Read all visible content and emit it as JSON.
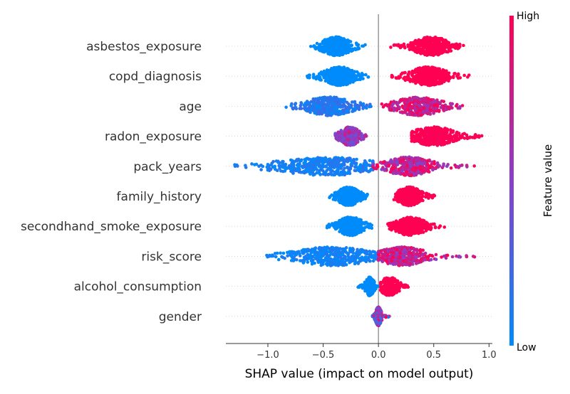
{
  "chart_data": {
    "type": "scatter",
    "subtype": "shap-beeswarm",
    "title": "",
    "xlabel": "SHAP value (impact on model output)",
    "ylabel": "",
    "xlim": [
      -1.38,
      1.03
    ],
    "xticks": [
      {
        "value": -1.0,
        "label": "−1.0"
      },
      {
        "value": -0.5,
        "label": "−0.5"
      },
      {
        "value": 0.0,
        "label": "0.0"
      },
      {
        "value": 0.5,
        "label": "0.5"
      },
      {
        "value": 1.0,
        "label": "1.0"
      }
    ],
    "grid": false,
    "zero_line": true,
    "colorbar": {
      "title": "Feature value",
      "high_label": "High",
      "low_label": "Low",
      "low_color": "#008bfb",
      "mid_color": "#8a3fc9",
      "high_color": "#ff0052"
    },
    "features": [
      {
        "name": "asbestos_exposure",
        "clusters": [
          {
            "center": -0.38,
            "min": -0.62,
            "max": -0.12,
            "spread": 0.075,
            "color_value": 0.0,
            "color_jitter": 0.0,
            "count": 420
          },
          {
            "center": 0.48,
            "min": 0.11,
            "max": 0.8,
            "spread": 0.09,
            "color_value": 1.0,
            "color_jitter": 0.0,
            "count": 420
          }
        ]
      },
      {
        "name": "copd_diagnosis",
        "clusters": [
          {
            "center": -0.35,
            "min": -0.65,
            "max": -0.09,
            "spread": 0.08,
            "color_value": 0.0,
            "color_jitter": 0.0,
            "count": 420
          },
          {
            "center": 0.45,
            "min": 0.11,
            "max": 0.84,
            "spread": 0.095,
            "color_value": 1.0,
            "color_jitter": 0.0,
            "count": 420
          }
        ]
      },
      {
        "name": "age",
        "clusters": [
          {
            "center": -0.45,
            "min": -0.84,
            "max": -0.05,
            "spread": 0.12,
            "color_value": 0.12,
            "color_jitter": 0.12,
            "count": 400
          },
          {
            "center": 0.36,
            "min": 0.03,
            "max": 0.76,
            "spread": 0.12,
            "color_value": 0.8,
            "color_jitter": 0.25,
            "count": 400
          }
        ]
      },
      {
        "name": "radon_exposure",
        "clusters": [
          {
            "center": -0.26,
            "min": -0.39,
            "max": -0.1,
            "spread": 0.05,
            "color_value": 0.55,
            "color_jitter": 0.25,
            "count": 350
          },
          {
            "center": 0.5,
            "min": 0.3,
            "max": 0.94,
            "spread": 0.11,
            "color_value": 1.0,
            "color_jitter": 0.05,
            "count": 420
          }
        ]
      },
      {
        "name": "pack_years",
        "clusters": [
          {
            "center": -0.48,
            "min": -1.32,
            "max": -0.05,
            "spread": 0.25,
            "color_value": 0.08,
            "color_jitter": 0.1,
            "count": 430
          },
          {
            "center": 0.28,
            "min": -0.05,
            "max": 0.87,
            "spread": 0.12,
            "color_value": 0.72,
            "color_jitter": 0.3,
            "count": 430
          }
        ]
      },
      {
        "name": "family_history",
        "clusters": [
          {
            "center": -0.27,
            "min": -0.45,
            "max": -0.1,
            "spread": 0.055,
            "color_value": 0.0,
            "color_jitter": 0.0,
            "count": 340
          },
          {
            "center": 0.28,
            "min": 0.14,
            "max": 0.52,
            "spread": 0.06,
            "color_value": 1.0,
            "color_jitter": 0.0,
            "count": 340
          }
        ]
      },
      {
        "name": "secondhand_smoke_exposure",
        "clusters": [
          {
            "center": -0.25,
            "min": -0.47,
            "max": -0.06,
            "spread": 0.065,
            "color_value": 0.0,
            "color_jitter": 0.0,
            "count": 380
          },
          {
            "center": 0.29,
            "min": 0.08,
            "max": 0.6,
            "spread": 0.075,
            "color_value": 1.0,
            "color_jitter": 0.0,
            "count": 380
          }
        ]
      },
      {
        "name": "risk_score",
        "clusters": [
          {
            "center": -0.42,
            "min": -1.01,
            "max": -0.02,
            "spread": 0.2,
            "color_value": 0.05,
            "color_jitter": 0.08,
            "count": 420
          },
          {
            "center": 0.22,
            "min": 0.0,
            "max": 0.87,
            "spread": 0.12,
            "color_value": 0.75,
            "color_jitter": 0.3,
            "count": 420
          }
        ]
      },
      {
        "name": "alcohol_consumption",
        "clusters": [
          {
            "center": -0.08,
            "min": -0.19,
            "max": 0.0,
            "spread": 0.022,
            "color_value": 0.0,
            "color_jitter": 0.0,
            "count": 250
          },
          {
            "center": 0.1,
            "min": 0.02,
            "max": 0.27,
            "spread": 0.045,
            "color_value": 1.0,
            "color_jitter": 0.0,
            "count": 250
          }
        ]
      },
      {
        "name": "gender",
        "clusters": [
          {
            "center": 0.0,
            "min": -0.07,
            "max": 0.1,
            "spread": 0.015,
            "color_value": 0.5,
            "color_jitter": 0.5,
            "count": 260
          }
        ]
      }
    ]
  }
}
